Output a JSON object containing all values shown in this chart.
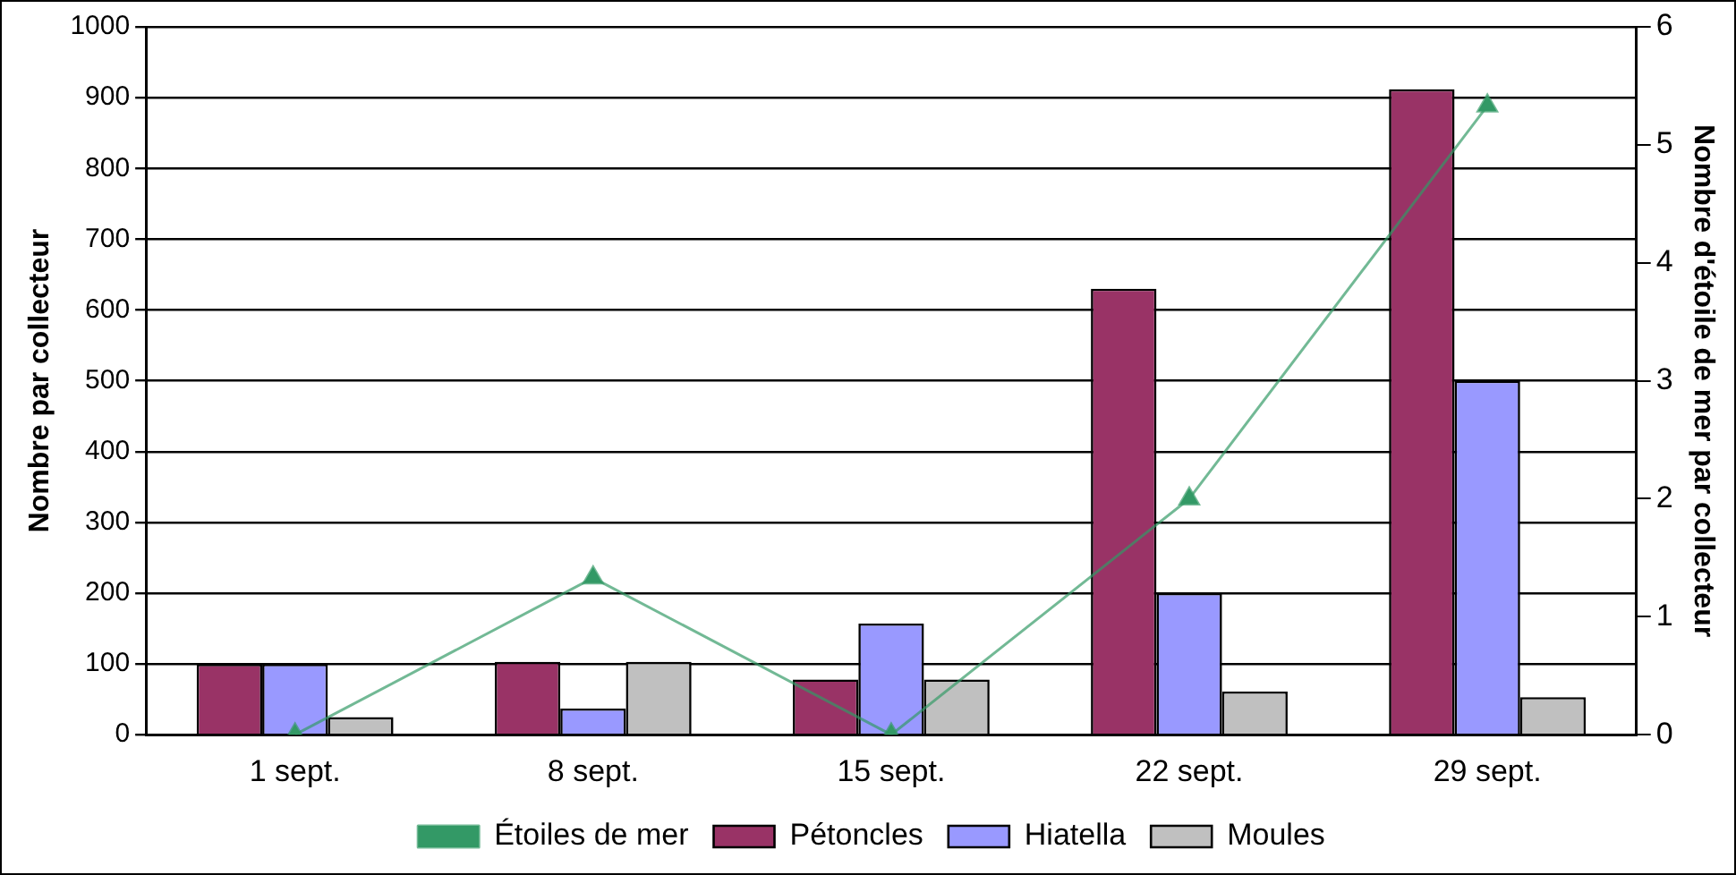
{
  "chart_data": {
    "type": "bar",
    "categories": [
      "1 sept.",
      "8 sept.",
      "15 sept.",
      "22 sept.",
      "29 sept."
    ],
    "series": [
      {
        "name": "Pétoncles",
        "color": "#993366",
        "values": [
          100,
          103,
          78,
          630,
          912
        ]
      },
      {
        "name": "Hiatella",
        "color": "#9999ff",
        "values": [
          100,
          37,
          157,
          200,
          500
        ]
      },
      {
        "name": "Moules",
        "color": "#c0c0c0",
        "values": [
          25,
          103,
          78,
          61,
          53
        ]
      },
      {
        "name": "Étoiles de mer",
        "type": "line",
        "axis": "y2",
        "color": "#339966",
        "marker": "triangle",
        "values": [
          0,
          1.33,
          0,
          2,
          5.33
        ]
      }
    ],
    "ylabel": "Nombre par collecteur",
    "y2label": "Nombre d'étoile de mer par collecteur",
    "ylim": [
      0,
      1000
    ],
    "yticks": [
      0,
      100,
      200,
      300,
      400,
      500,
      600,
      700,
      800,
      900,
      1000
    ],
    "y2lim": [
      0,
      6
    ],
    "y2ticks": [
      0,
      1,
      2,
      3,
      4,
      5,
      6
    ],
    "grid": "y",
    "legend": "bottom"
  }
}
